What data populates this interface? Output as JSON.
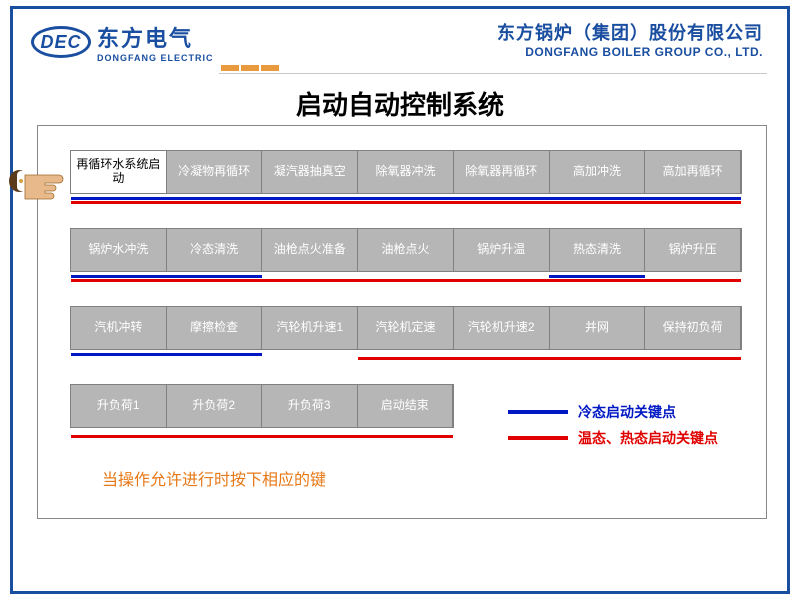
{
  "logo": {
    "abbrev": "DEC",
    "cn": "东方电气",
    "en": "DONGFANG ELECTRIC"
  },
  "company": {
    "cn": "东方锅炉（集团）股份有限公司",
    "en": "DONGFANG BOILER GROUP CO., LTD."
  },
  "title": "启动自动控制系统",
  "rows": [
    {
      "cells": [
        {
          "label": "再循环水系统启动",
          "active": true
        },
        {
          "label": "冷凝物再循环"
        },
        {
          "label": "凝汽器抽真空"
        },
        {
          "label": "除氧器冲洗"
        },
        {
          "label": "除氧器再循环"
        },
        {
          "label": "高加冲洗"
        },
        {
          "label": "高加再循环"
        }
      ],
      "underlines": [
        {
          "color": "blue",
          "left_pct": 0,
          "width_pct": 100,
          "offset": 2
        },
        {
          "color": "red",
          "left_pct": 0,
          "width_pct": 100,
          "offset": 6
        }
      ]
    },
    {
      "cells": [
        {
          "label": "锅炉水冲洗"
        },
        {
          "label": "冷态清洗"
        },
        {
          "label": "油枪点火准备"
        },
        {
          "label": "油枪点火"
        },
        {
          "label": "锅炉升温"
        },
        {
          "label": "热态清洗"
        },
        {
          "label": "锅炉升压"
        }
      ],
      "underlines": [
        {
          "color": "blue",
          "left_pct": 0,
          "width_pct": 28.5,
          "offset": 2
        },
        {
          "color": "red",
          "left_pct": 0,
          "width_pct": 100,
          "offset": 6
        },
        {
          "color": "blue",
          "left_pct": 71.4,
          "width_pct": 14.3,
          "offset": 2
        }
      ]
    },
    {
      "cells": [
        {
          "label": "汽机冲转"
        },
        {
          "label": "摩擦检查"
        },
        {
          "label": "汽轮机升速1"
        },
        {
          "label": "汽轮机定速"
        },
        {
          "label": "汽轮机升速2"
        },
        {
          "label": "并网"
        },
        {
          "label": "保持初负荷"
        }
      ],
      "underlines": [
        {
          "color": "blue",
          "left_pct": 0,
          "width_pct": 28.5,
          "offset": 2
        },
        {
          "color": "red",
          "left_pct": 42.8,
          "width_pct": 57.2,
          "offset": 6
        }
      ]
    },
    {
      "short": true,
      "cells": [
        {
          "label": "升负荷1"
        },
        {
          "label": "升负荷2"
        },
        {
          "label": "升负荷3"
        },
        {
          "label": "启动结束"
        }
      ],
      "underlines": [
        {
          "color": "red",
          "left_pct": 0,
          "width_pct": 100,
          "offset": 6
        }
      ]
    }
  ],
  "legend": {
    "blue": "冷态启动关键点",
    "red": "温态、热态启动关键点"
  },
  "hint": "当操作允许进行时按下相应的键",
  "colors": {
    "underline_blue": "#0018c4",
    "underline_red": "#e00000",
    "cell_bg": "#b6b6b6",
    "cell_text": "#ffffff",
    "brand_blue": "#1a4ea0",
    "hint_orange": "#e77817"
  }
}
